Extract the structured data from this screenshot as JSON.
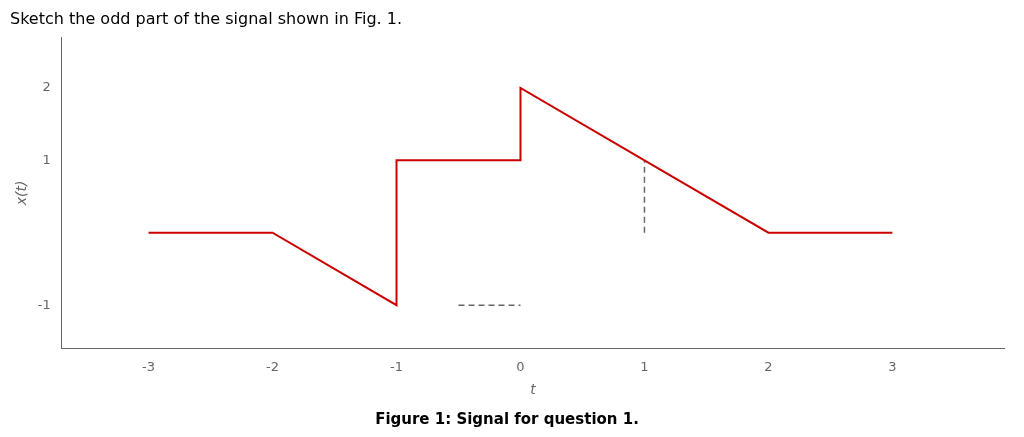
{
  "chart_data": {
    "type": "line",
    "title": "Sketch the odd part of the signal shown in Fig. 1.",
    "caption": "Figure 1: Signal for question 1.",
    "x_label": "t",
    "y_label": "x(t)",
    "series": [
      {
        "color": "#cc0000",
        "line_style": "solid",
        "x": [
          -3,
          -2,
          -1,
          -1,
          0,
          0,
          1,
          2,
          3
        ],
        "values": [
          0,
          0,
          -1,
          1,
          1,
          2,
          1,
          0,
          0
        ]
      },
      {
        "color": "#666666",
        "line_style": "dashed",
        "x": [
          -0.5,
          0.0
        ],
        "values": [
          -1.0,
          -1.0
        ]
      },
      {
        "color": "#666666",
        "line_style": "dashed",
        "x": [
          1.0,
          1.0
        ],
        "values": [
          0.0,
          1.0
        ]
      }
    ],
    "xlim": [
      -3.7,
      3.9
    ],
    "xticks": [
      -3,
      -2,
      -1,
      0,
      1,
      2,
      3
    ],
    "ylim": [
      -1.6,
      2.7
    ],
    "yticks": [
      -1,
      1,
      2
    ],
    "grid": false
  }
}
